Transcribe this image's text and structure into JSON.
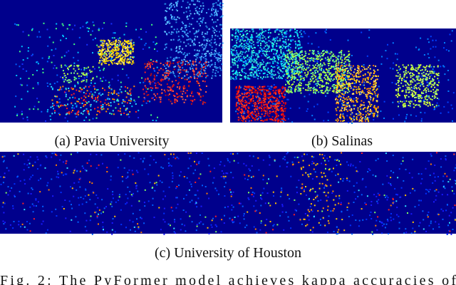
{
  "figure": {
    "subfigures": [
      {
        "caption": "(a) Pavia University"
      },
      {
        "caption": "(b) Salinas"
      },
      {
        "caption": "(c) University of Houston"
      }
    ],
    "caption": "Fig. 2: The PyFormer model achieves kappa accuracies of"
  }
}
